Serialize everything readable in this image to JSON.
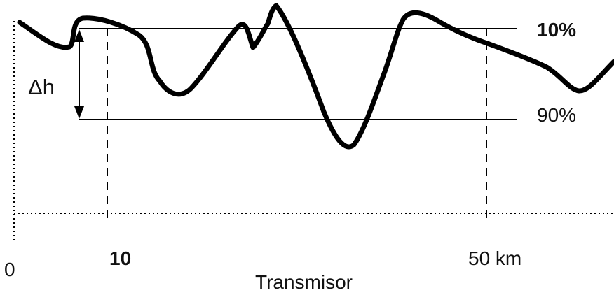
{
  "labels": {
    "delta_h": "Δh",
    "level_top": "10%",
    "level_bottom": "90%",
    "tick_zero": "0",
    "tick_ten": "10",
    "tick_fifty": "50 km",
    "axis_title": "Transmisor"
  },
  "colors": {
    "stroke": "#000000",
    "text": "#111111",
    "background": "#ffffff"
  }
}
